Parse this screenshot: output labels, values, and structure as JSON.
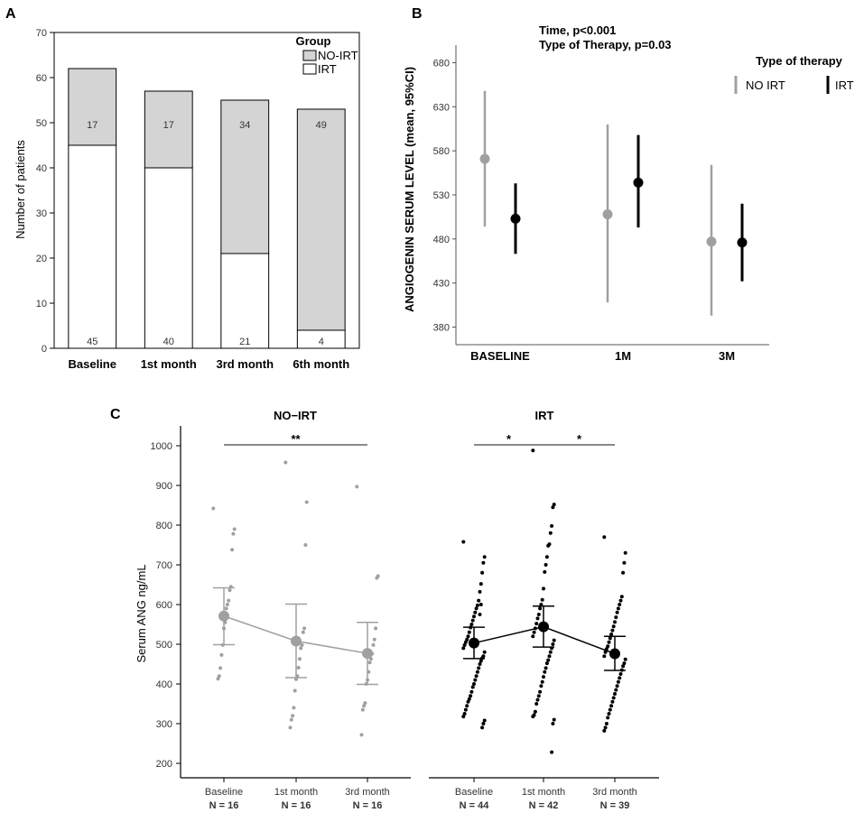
{
  "panels": {
    "A": "A",
    "B": "B",
    "C": "C"
  },
  "colors": {
    "gray": "#a0a0a0",
    "black": "#000000",
    "bar_gray": "#d4d4d4",
    "bar_white": "#ffffff"
  },
  "chart_data": [
    {
      "id": "A",
      "type": "bar",
      "stacked": true,
      "categories": [
        "Baseline",
        "1st month",
        "3rd month",
        "6th month"
      ],
      "series": [
        {
          "name": "IRT",
          "values": [
            45,
            40,
            21,
            4
          ]
        },
        {
          "name": "NO-IRT",
          "values": [
            17,
            17,
            34,
            49
          ]
        }
      ],
      "ylabel": "Number of patients",
      "ylim": [
        0,
        70
      ],
      "yticks": [
        0,
        10,
        20,
        30,
        40,
        50,
        60,
        70
      ],
      "legend_title": "Group",
      "legend_entries": [
        "NO-IRT",
        "IRT"
      ],
      "legend": "top-right"
    },
    {
      "id": "B",
      "type": "scatter",
      "subtype": "point-errorbar",
      "annotations": [
        "Time, p<0.001",
        "Type of Therapy, p=0.03"
      ],
      "legend_title": "Type of therapy",
      "legend_entries": [
        "NO IRT",
        "IRT"
      ],
      "ylabel": "ANGIOGENIN SERUM LEVEL (mean, 95%CI)",
      "ylim": [
        360,
        700
      ],
      "yticks": [
        380,
        430,
        480,
        530,
        580,
        630,
        680
      ],
      "categories": [
        "BASELINE",
        "1M",
        "3M"
      ],
      "series": [
        {
          "name": "NO IRT",
          "mean": [
            571,
            508,
            477
          ],
          "lower": [
            494,
            408,
            393
          ],
          "upper": [
            648,
            610,
            564
          ]
        },
        {
          "name": "IRT",
          "mean": [
            503,
            544,
            476
          ],
          "lower": [
            463,
            493,
            432
          ],
          "upper": [
            543,
            598,
            520
          ]
        }
      ]
    },
    {
      "id": "C",
      "type": "scatter",
      "subtype": "dot-mean-ci",
      "ylabel": "Serum ANG ng/mL",
      "ylim": [
        180,
        1010
      ],
      "yticks": [
        200,
        300,
        400,
        500,
        600,
        700,
        800,
        900,
        1000
      ],
      "groups": [
        {
          "title": "NO−IRT",
          "categories": [
            "Baseline",
            "1st month",
            "3rd month"
          ],
          "n_labels": [
            "N = 16",
            "N = 16",
            "N = 16"
          ],
          "mean": [
            571,
            508,
            477
          ],
          "lower": [
            499,
            416,
            399
          ],
          "upper": [
            642,
            601,
            555
          ],
          "points": [
            [
              842,
              790,
              778,
              738,
              645,
              636,
              610,
              600,
              590,
              555,
              540,
              498,
              473,
              440,
              420,
              413
            ],
            [
              958,
              858,
              750,
              540,
              530,
              498,
              490,
              463,
              441,
              420,
              412,
              383,
              340,
              320,
              310,
              290
            ],
            [
              897,
              672,
              667,
              540,
              512,
              498,
              476,
              463,
              454,
              430,
              410,
              400,
              352,
              345,
              335,
              272
            ]
          ],
          "significance": [
            {
              "from": 0,
              "to": 2,
              "label": "**"
            }
          ]
        },
        {
          "title": "IRT",
          "categories": [
            "Baseline",
            "1st month",
            "3rd month"
          ],
          "n_labels": [
            "N = 44",
            "N = 42",
            "N = 39"
          ],
          "mean": [
            503,
            544,
            476
          ],
          "lower": [
            464,
            493,
            434
          ],
          "upper": [
            543,
            596,
            520
          ],
          "points": [
            [
              758,
              720,
              705,
              680,
              652,
              632,
              610,
              598,
              590,
              580,
              570,
              560,
              550,
              542,
              530,
              520,
              512,
              505,
              498,
              490,
              480,
              470,
              465,
              458,
              450,
              440,
              430,
              420,
              410,
              400,
              392,
              380,
              370,
              362,
              355,
              345,
              335,
              325,
              318,
              308,
              300,
              290,
              600,
              575
            ],
            [
              988,
              852,
              845,
              798,
              780,
              752,
              748,
              720,
              700,
              682,
              640,
              612,
              600,
              590,
              575,
              565,
              552,
              540,
              530,
              520,
              510,
              500,
              490,
              480,
              470,
              460,
              452,
              440,
              430,
              418,
              405,
              395,
              380,
              370,
              360,
              350,
              330,
              322,
              318,
              310,
              300,
              228
            ],
            [
              770,
              730,
              705,
              680,
              620,
              610,
              600,
              590,
              580,
              568,
              556,
              545,
              535,
              525,
              515,
              505,
              495,
              488,
              480,
              470,
              462,
              452,
              445,
              435,
              425,
              415,
              405,
              395,
              385,
              375,
              365,
              355,
              345,
              335,
              325,
              315,
              300,
              290,
              282
            ]
          ],
          "significance": [
            {
              "from": 0,
              "to": 1,
              "label": "*"
            },
            {
              "from": 1,
              "to": 2,
              "label": "*"
            }
          ]
        }
      ]
    }
  ]
}
